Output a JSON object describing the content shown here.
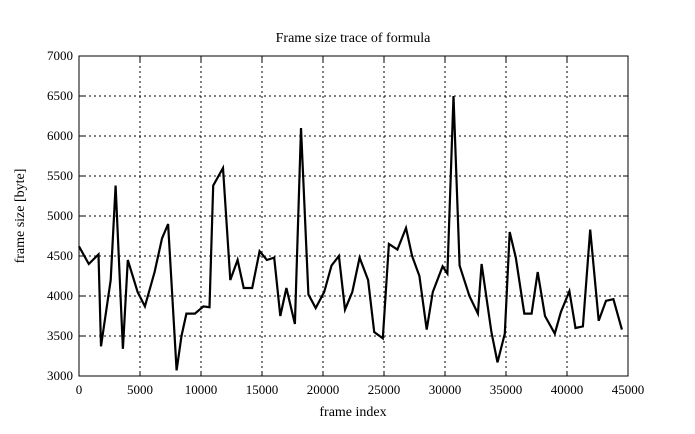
{
  "chart_data": {
    "type": "line",
    "title": "Frame size trace of formula",
    "xlabel": "frame index",
    "ylabel": "frame size [byte]",
    "xlim": [
      0,
      45000
    ],
    "ylim": [
      3000,
      7000
    ],
    "xticks": [
      0,
      5000,
      10000,
      15000,
      20000,
      25000,
      30000,
      35000,
      40000,
      45000
    ],
    "yticks": [
      3000,
      3500,
      4000,
      4500,
      5000,
      5500,
      6000,
      6500,
      7000
    ],
    "grid": true,
    "line_color": "#000000",
    "x": [
      0,
      800,
      1600,
      1800,
      2600,
      3000,
      3600,
      4000,
      4800,
      5400,
      6200,
      6800,
      7300,
      8000,
      8400,
      8800,
      9500,
      10200,
      10700,
      11000,
      11800,
      12400,
      13000,
      13500,
      14200,
      14800,
      15400,
      16000,
      16500,
      17000,
      17700,
      18200,
      18800,
      19400,
      20100,
      20700,
      21300,
      21800,
      22400,
      23000,
      23700,
      24200,
      24900,
      25400,
      26100,
      26800,
      27300,
      27900,
      28500,
      29000,
      29800,
      30200,
      30700,
      31200,
      32000,
      32700,
      33000,
      33800,
      34300,
      34900,
      35300,
      35800,
      36500,
      37100,
      37600,
      38200,
      39000,
      39500,
      40200,
      40700,
      41300,
      41900,
      42600,
      43200,
      43800,
      44500
    ],
    "y": [
      4620,
      4400,
      4520,
      3370,
      4200,
      5380,
      3340,
      4450,
      4050,
      3870,
      4300,
      4720,
      4900,
      3070,
      3500,
      3780,
      3780,
      3870,
      3860,
      5380,
      5600,
      4200,
      4450,
      4100,
      4100,
      4560,
      4450,
      4480,
      3750,
      4100,
      3650,
      6100,
      4020,
      3850,
      4050,
      4380,
      4500,
      3830,
      4050,
      4480,
      4200,
      3550,
      3470,
      4650,
      4580,
      4850,
      4500,
      4250,
      3580,
      4050,
      4370,
      4280,
      6500,
      4380,
      4000,
      3780,
      4400,
      3550,
      3170,
      3530,
      4800,
      4480,
      3780,
      3780,
      4300,
      3750,
      3530,
      3800,
      4060,
      3600,
      3620,
      4830,
      3690,
      3940,
      3960,
      3580
    ]
  }
}
